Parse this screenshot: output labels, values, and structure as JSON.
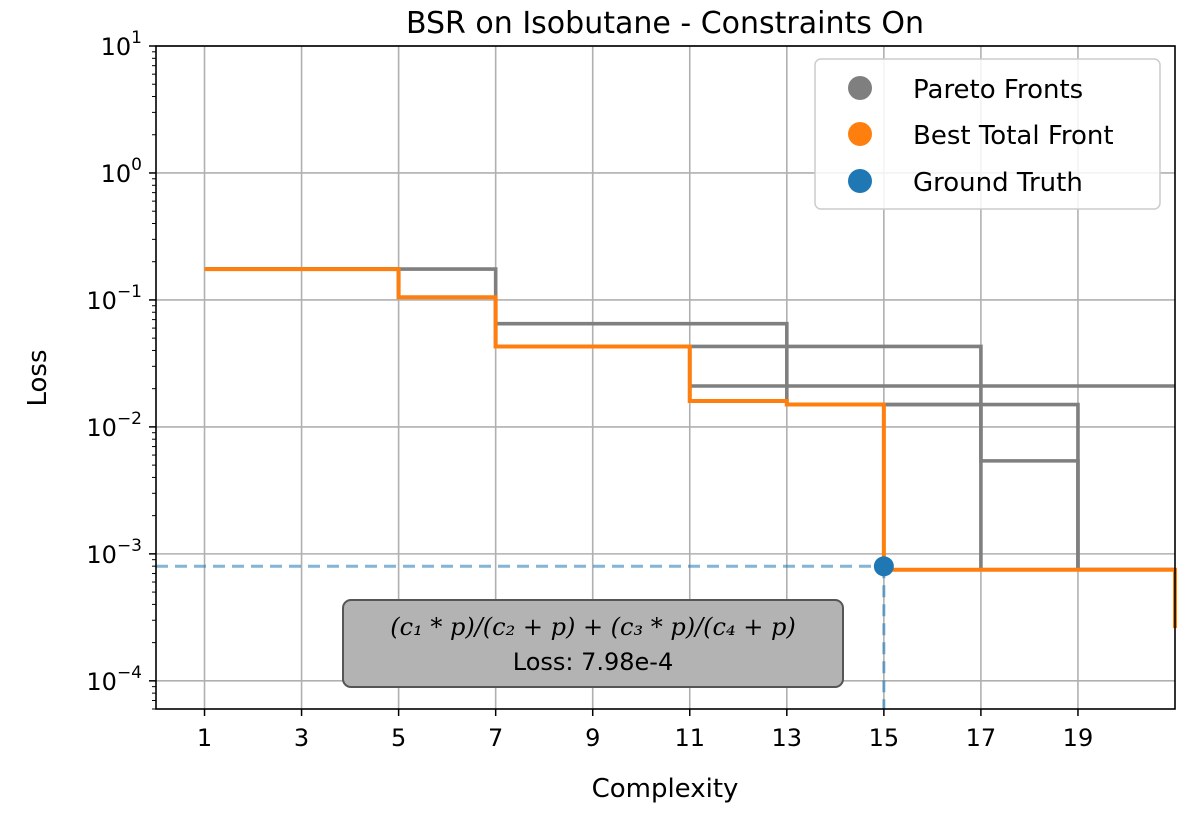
{
  "chart_data": {
    "type": "line",
    "title": "BSR on Isobutane - Constraints On",
    "xlabel": "Complexity",
    "ylabel": "Loss",
    "xlim": [
      0,
      21
    ],
    "ylim": [
      6e-05,
      10
    ],
    "yscale": "log",
    "grid": true,
    "xticks": [
      1,
      3,
      5,
      7,
      9,
      11,
      13,
      15,
      17,
      19
    ],
    "yticks": [
      {
        "value": 0.0001,
        "base": "10",
        "exp": "−4"
      },
      {
        "value": 0.001,
        "base": "10",
        "exp": "−3"
      },
      {
        "value": 0.01,
        "base": "10",
        "exp": "−2"
      },
      {
        "value": 0.1,
        "base": "10",
        "exp": "−1"
      },
      {
        "value": 1,
        "base": "10",
        "exp": "0"
      },
      {
        "value": 10,
        "base": "10",
        "exp": "1"
      }
    ],
    "legend_position": "top-right",
    "legend": [
      {
        "label": "Pareto Fronts",
        "color": "#7f7f7f"
      },
      {
        "label": "Best Total Front",
        "color": "#ff7f0e"
      },
      {
        "label": "Ground Truth",
        "color": "#1f77b4"
      }
    ],
    "series": [
      {
        "name": "Pareto Fronts",
        "color": "#7f7f7f",
        "step": "post",
        "x": [
          1,
          5,
          7,
          13,
          21
        ],
        "y": [
          0.175,
          0.175,
          0.065,
          0.021,
          0.021
        ]
      },
      {
        "name": "Pareto Fronts",
        "color": "#7f7f7f",
        "step": "post",
        "x": [
          1,
          5,
          7,
          11,
          17,
          21
        ],
        "y": [
          0.175,
          0.105,
          0.043,
          0.043,
          0.00075,
          0.00075
        ]
      },
      {
        "name": "Pareto Fronts",
        "color": "#7f7f7f",
        "step": "post",
        "x": [
          1,
          5,
          7,
          11,
          13,
          19,
          21
        ],
        "y": [
          0.175,
          0.105,
          0.043,
          0.021,
          0.015,
          0.00075,
          0.00075
        ]
      },
      {
        "name": "Pareto Fronts",
        "color": "#7f7f7f",
        "step": "post",
        "x": [
          1,
          5,
          7,
          11,
          13,
          17,
          19,
          21
        ],
        "y": [
          0.175,
          0.105,
          0.043,
          0.016,
          0.015,
          0.0054,
          0.00075,
          0.00075
        ]
      },
      {
        "name": "Best Total Front",
        "color": "#ff7f0e",
        "step": "post",
        "x": [
          1,
          5,
          7,
          11,
          13,
          15,
          21,
          21
        ],
        "y": [
          0.175,
          0.105,
          0.043,
          0.016,
          0.015,
          0.00075,
          0.00075,
          0.00026
        ]
      }
    ],
    "ground_truth": {
      "x": 15,
      "y": 0.000798,
      "color": "#1f77b4"
    },
    "annotation": {
      "formula": "(c₁ * p)/(c₂ + p) + (c₃ * p)/(c₄ + p)",
      "loss_text": "Loss: 7.98e-4"
    }
  }
}
